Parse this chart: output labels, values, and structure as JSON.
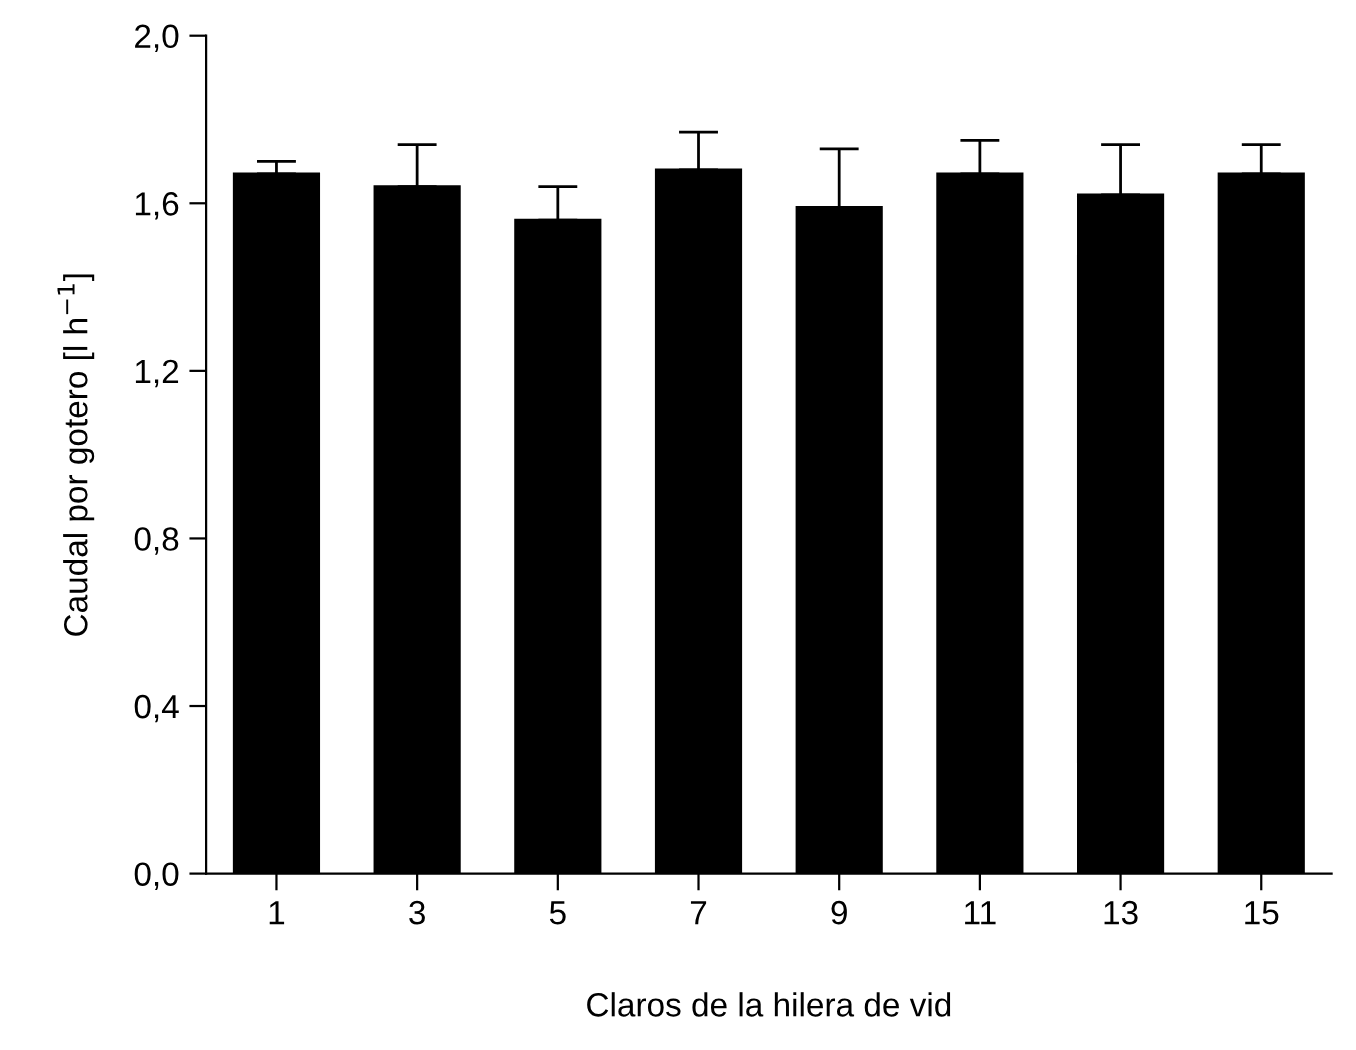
{
  "chart_data": {
    "type": "bar",
    "xlabel": "Claros de la hilera de vid",
    "ylabel": "Caudal por gotero [l h$^{−1}$]",
    "categories": [
      "1",
      "3",
      "5",
      "7",
      "9",
      "11",
      "13",
      "15"
    ],
    "values": [
      1.67,
      1.64,
      1.56,
      1.68,
      1.59,
      1.67,
      1.62,
      1.67
    ],
    "errors": [
      [
        1.67,
        1.7
      ],
      [
        1.64,
        1.74
      ],
      [
        1.56,
        1.64
      ],
      [
        1.68,
        1.77
      ],
      [
        1.59,
        1.73
      ],
      [
        1.67,
        1.75
      ],
      [
        1.62,
        1.74
      ],
      [
        1.67,
        1.74
      ]
    ],
    "color": "#000000",
    "ylim": [
      0,
      2.0
    ],
    "yticks": [
      {
        "value": 0,
        "label": "0,0"
      },
      {
        "value": 0.4,
        "label": "0,4"
      },
      {
        "value": 0.8,
        "label": "0,8"
      },
      {
        "value": 1.2,
        "label": "1,2"
      },
      {
        "value": 1.6,
        "label": "1,6"
      },
      {
        "value": 2.0,
        "label": "2,0"
      }
    ],
    "grid": false,
    "legend": false
  }
}
